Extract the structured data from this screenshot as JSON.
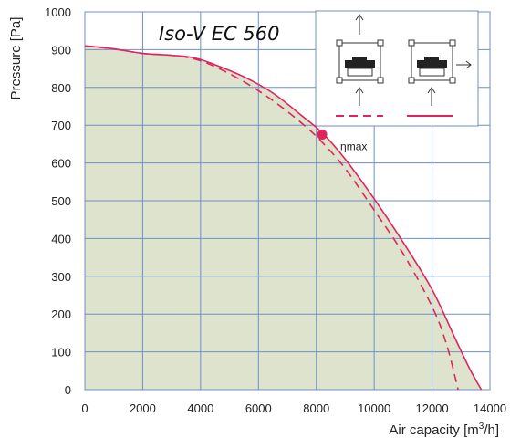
{
  "chart_data": {
    "type": "line",
    "title": "Iso-V EC 560",
    "xlabel": "Air capacity [m³/h]",
    "ylabel": "Pressure [Pa]",
    "xlim": [
      0,
      14000
    ],
    "ylim": [
      0,
      1000
    ],
    "x_ticks": [
      0,
      2000,
      4000,
      6000,
      8000,
      10000,
      12000,
      14000
    ],
    "y_ticks": [
      0,
      100,
      200,
      300,
      400,
      500,
      600,
      700,
      800,
      900,
      1000
    ],
    "grid": true,
    "series": [
      {
        "style": "solid",
        "color": "#e0245e",
        "x": [
          0,
          1000,
          2000,
          3000,
          3800,
          4500,
          5500,
          6500,
          7500,
          8200,
          9000,
          10000,
          11000,
          12000,
          12800,
          13300,
          13700
        ],
        "y": [
          910,
          902,
          890,
          885,
          878,
          860,
          828,
          785,
          725,
          680,
          610,
          505,
          390,
          265,
          135,
          55,
          0
        ]
      },
      {
        "style": "dashed",
        "color": "#e0245e",
        "x": [
          0,
          1000,
          2000,
          3000,
          3800,
          4500,
          5500,
          6500,
          7500,
          8200,
          9000,
          10000,
          11000,
          12000,
          12500,
          12900
        ],
        "y": [
          910,
          902,
          890,
          885,
          875,
          855,
          815,
          765,
          705,
          655,
          585,
          475,
          360,
          220,
          120,
          0
        ]
      }
    ],
    "annotations": [
      {
        "label": "ηmax",
        "x": 8200,
        "y": 675
      }
    ],
    "fill_color": "#dde3cc",
    "grid_color": "#6f8fc6"
  }
}
